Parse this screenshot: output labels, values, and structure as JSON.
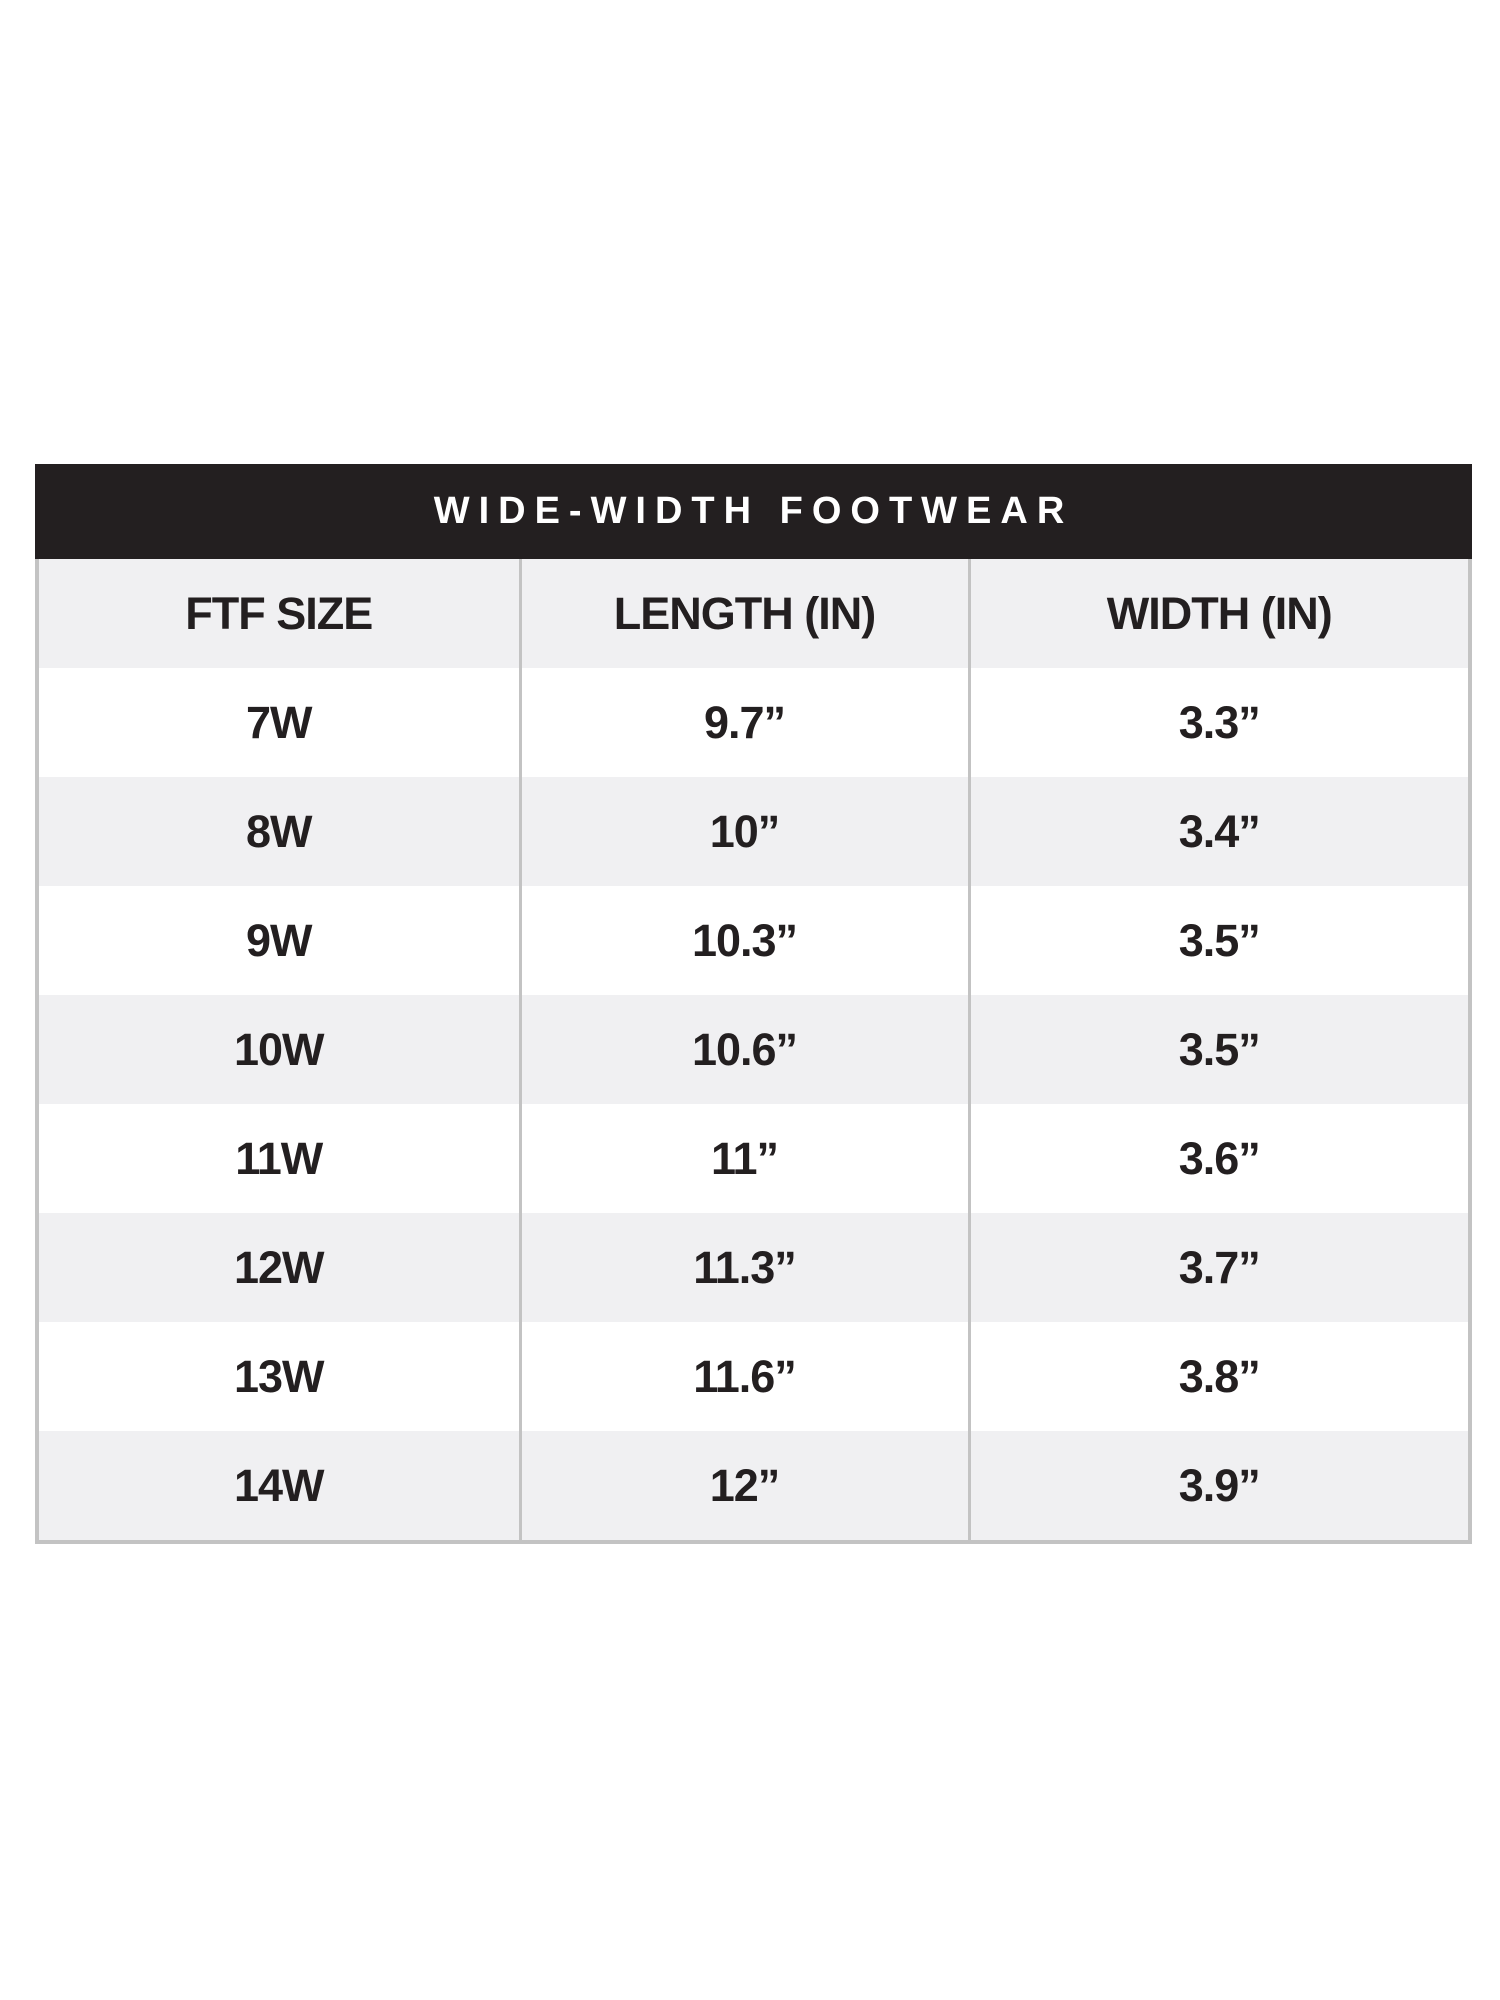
{
  "title": "WIDE-WIDTH FOOTWEAR",
  "columns": [
    "FTF SIZE",
    "LENGTH (IN)",
    "WIDTH (IN)"
  ],
  "rows": [
    [
      "7W",
      "9.7”",
      "3.3”"
    ],
    [
      "8W",
      "10”",
      "3.4”"
    ],
    [
      "9W",
      "10.3”",
      "3.5”"
    ],
    [
      "10W",
      "10.6”",
      "3.5”"
    ],
    [
      "11W",
      "11”",
      "3.6”"
    ],
    [
      "12W",
      "11.3”",
      "3.7”"
    ],
    [
      "13W",
      "11.6”",
      "3.8”"
    ],
    [
      "14W",
      "12”",
      "3.9”"
    ]
  ],
  "colors": {
    "header_bg": "#231f20",
    "stripe": "#f0f0f2",
    "border": "#c3c3c3",
    "text": "#231f20"
  }
}
